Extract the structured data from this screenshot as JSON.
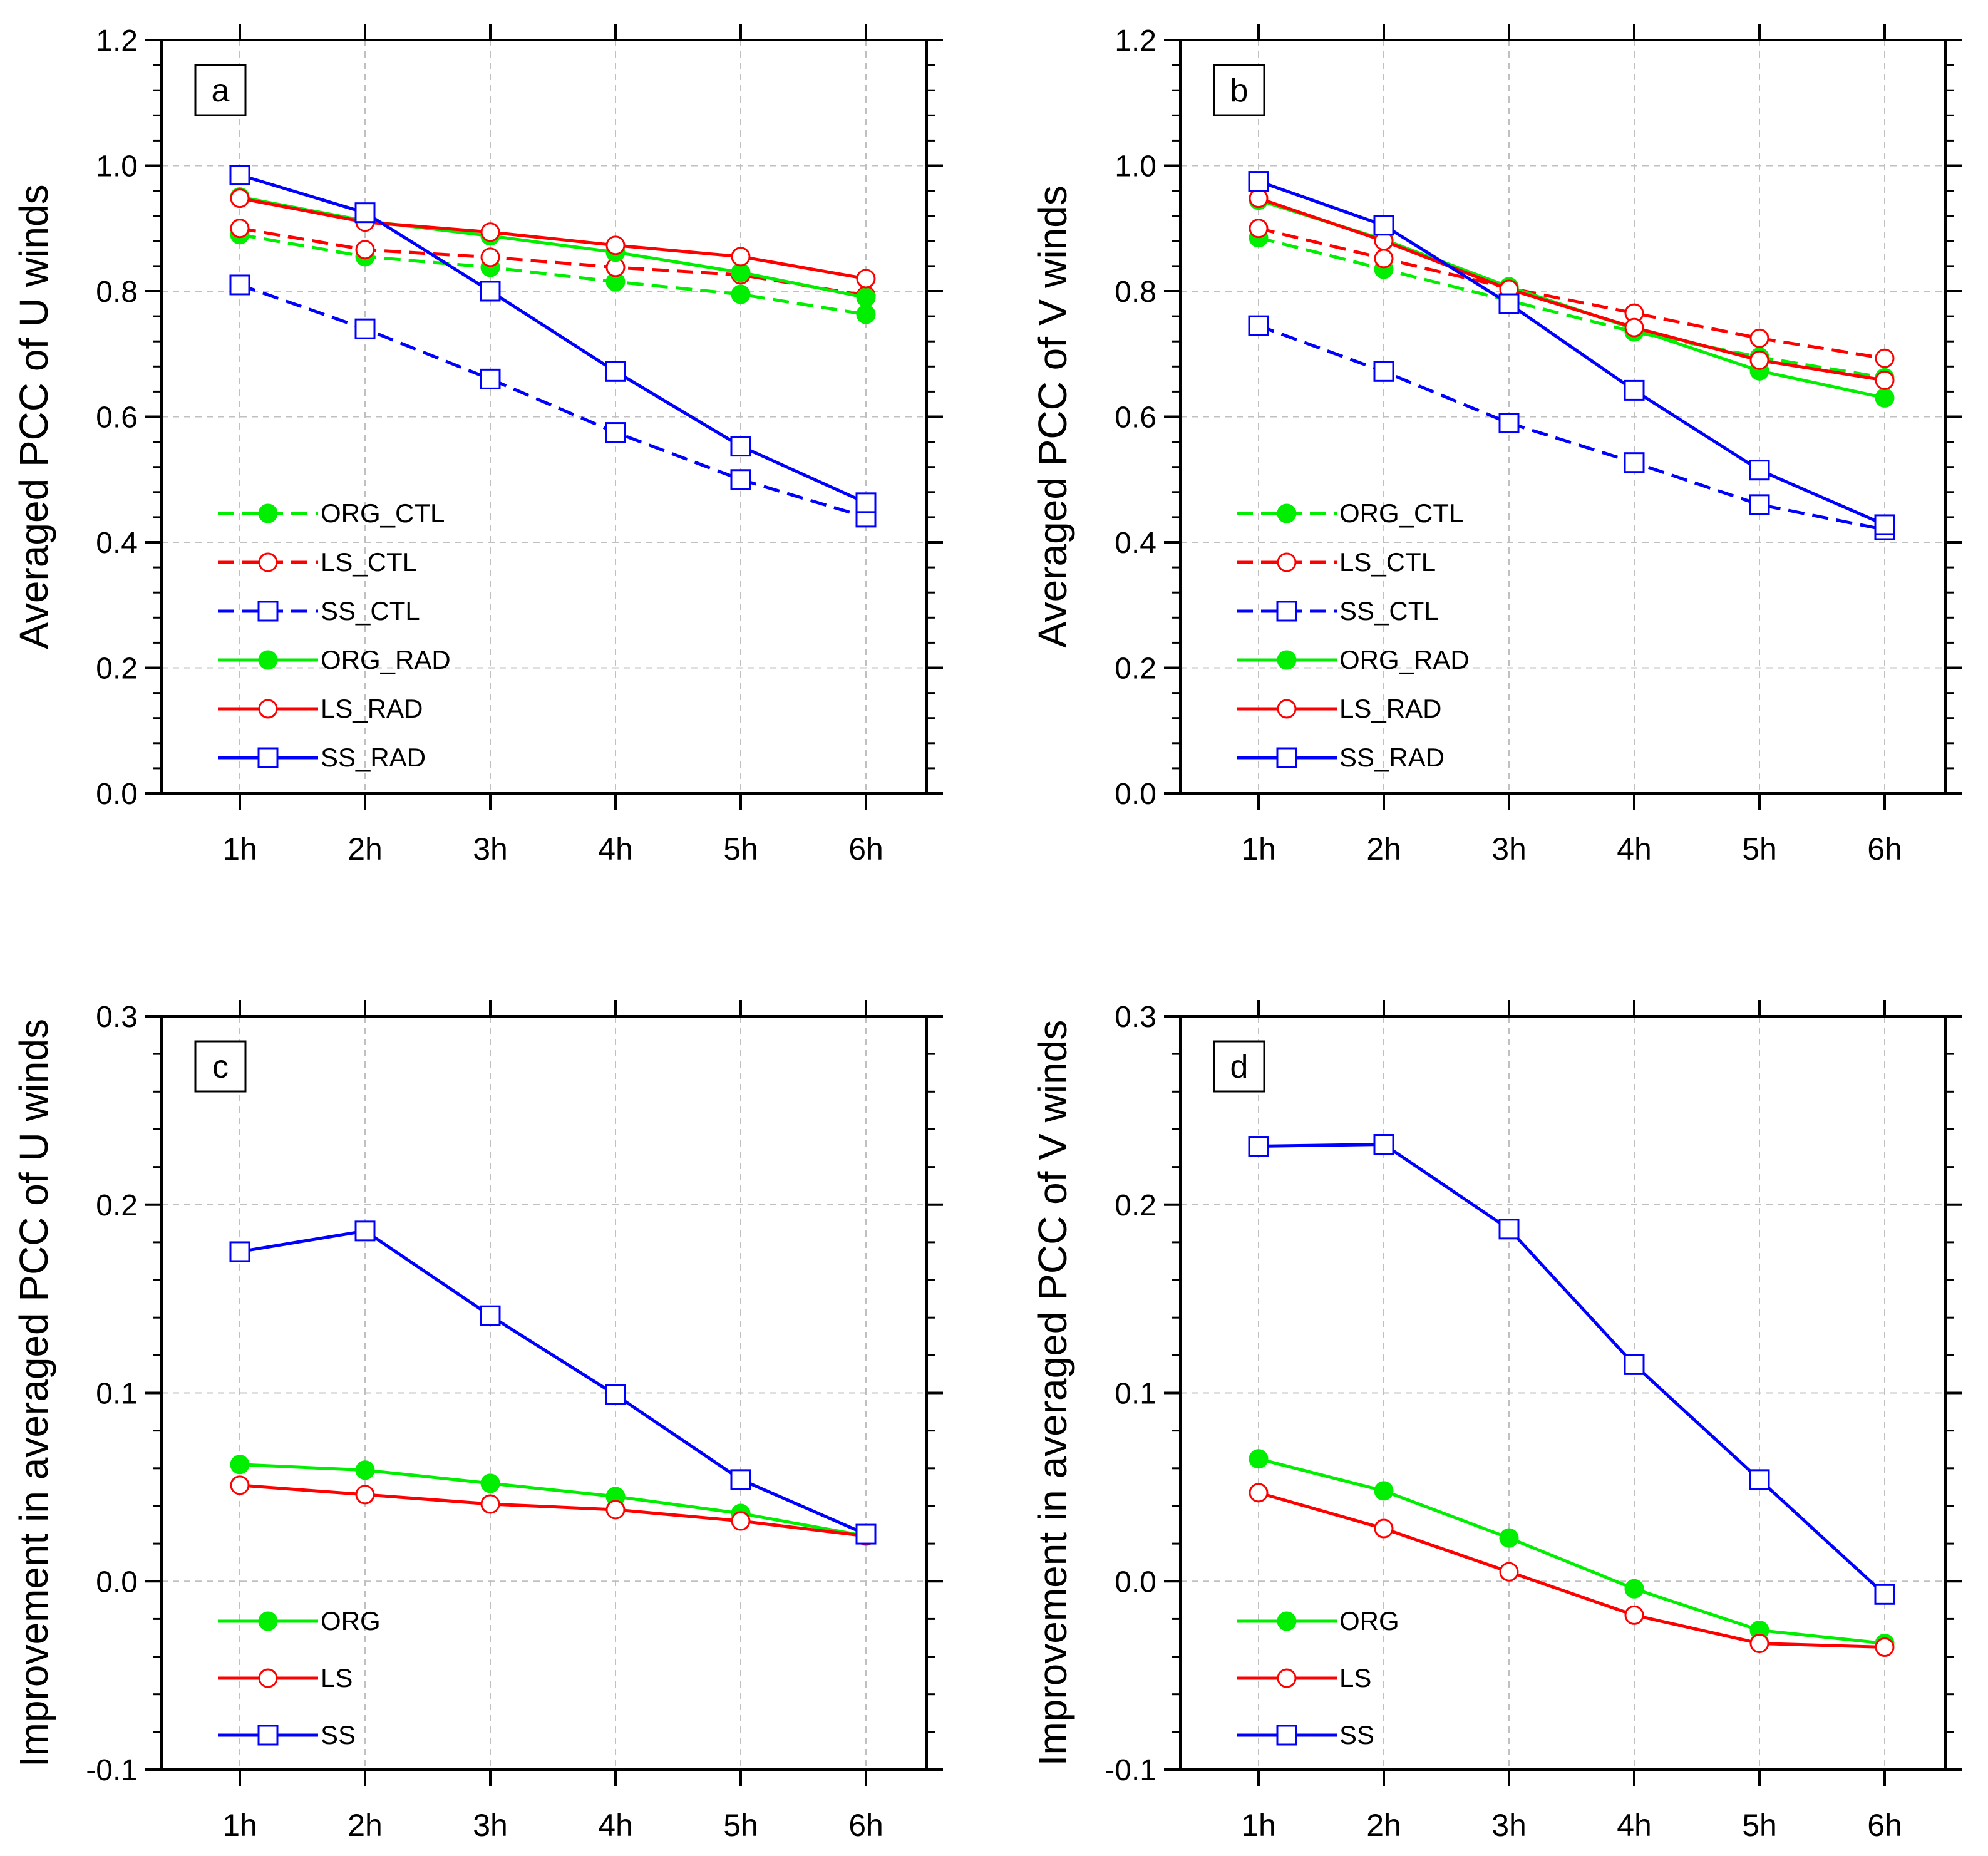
{
  "colors": {
    "ORG": "#00ee00",
    "LS": "#ff0000",
    "SS": "#0000ff",
    "axis": "#000000",
    "grid": "#c0c0c0"
  },
  "chart_data": [
    {
      "type": "line",
      "panel_label": "a",
      "title": "",
      "xlabel": "",
      "ylabel": "Averaged PCC of U winds",
      "categories": [
        "1h",
        "2h",
        "3h",
        "4h",
        "5h",
        "6h"
      ],
      "ylim": [
        0.0,
        1.2
      ],
      "yticks": [
        0.0,
        0.2,
        0.4,
        0.6,
        0.8,
        1.0,
        1.2
      ],
      "ytick_labels": [
        "0.0",
        "0.2",
        "0.4",
        "0.6",
        "0.8",
        "1.0",
        "1.2"
      ],
      "grid": true,
      "legend_position": "lower-left",
      "series": [
        {
          "name": "ORG_CTL",
          "group": "ORG",
          "dashed": true,
          "marker": "filled-circle",
          "values": [
            0.89,
            0.855,
            0.838,
            0.815,
            0.795,
            0.763
          ]
        },
        {
          "name": "LS_CTL",
          "group": "LS",
          "dashed": true,
          "marker": "open-circle",
          "values": [
            0.9,
            0.866,
            0.854,
            0.838,
            0.826,
            0.793
          ]
        },
        {
          "name": "SS_CTL",
          "group": "SS",
          "dashed": true,
          "marker": "open-square",
          "values": [
            0.81,
            0.74,
            0.66,
            0.575,
            0.5,
            0.44
          ]
        },
        {
          "name": "ORG_RAD",
          "group": "ORG",
          "dashed": false,
          "marker": "filled-circle",
          "values": [
            0.95,
            0.912,
            0.888,
            0.862,
            0.83,
            0.79
          ]
        },
        {
          "name": "LS_RAD",
          "group": "LS",
          "dashed": false,
          "marker": "open-circle",
          "values": [
            0.948,
            0.91,
            0.894,
            0.873,
            0.855,
            0.82
          ]
        },
        {
          "name": "SS_RAD",
          "group": "SS",
          "dashed": false,
          "marker": "open-square",
          "values": [
            0.985,
            0.925,
            0.8,
            0.672,
            0.553,
            0.463
          ]
        }
      ]
    },
    {
      "type": "line",
      "panel_label": "b",
      "title": "",
      "xlabel": "",
      "ylabel": "Averaged PCC of V winds",
      "categories": [
        "1h",
        "2h",
        "3h",
        "4h",
        "5h",
        "6h"
      ],
      "ylim": [
        0.0,
        1.2
      ],
      "yticks": [
        0.0,
        0.2,
        0.4,
        0.6,
        0.8,
        1.0,
        1.2
      ],
      "ytick_labels": [
        "0.0",
        "0.2",
        "0.4",
        "0.6",
        "0.8",
        "1.0",
        "1.2"
      ],
      "grid": true,
      "legend_position": "lower-left",
      "series": [
        {
          "name": "ORG_CTL",
          "group": "ORG",
          "dashed": true,
          "marker": "filled-circle",
          "values": [
            0.885,
            0.835,
            0.785,
            0.735,
            0.695,
            0.662
          ]
        },
        {
          "name": "LS_CTL",
          "group": "LS",
          "dashed": true,
          "marker": "open-circle",
          "values": [
            0.9,
            0.852,
            0.805,
            0.765,
            0.725,
            0.693
          ]
        },
        {
          "name": "SS_CTL",
          "group": "SS",
          "dashed": true,
          "marker": "open-square",
          "values": [
            0.745,
            0.672,
            0.59,
            0.527,
            0.46,
            0.42
          ]
        },
        {
          "name": "ORG_RAD",
          "group": "ORG",
          "dashed": false,
          "marker": "filled-circle",
          "values": [
            0.945,
            0.882,
            0.807,
            0.74,
            0.673,
            0.63
          ]
        },
        {
          "name": "LS_RAD",
          "group": "LS",
          "dashed": false,
          "marker": "open-circle",
          "values": [
            0.948,
            0.88,
            0.803,
            0.742,
            0.69,
            0.658
          ]
        },
        {
          "name": "SS_RAD",
          "group": "SS",
          "dashed": false,
          "marker": "open-square",
          "values": [
            0.975,
            0.905,
            0.78,
            0.642,
            0.515,
            0.428
          ]
        }
      ]
    },
    {
      "type": "line",
      "panel_label": "c",
      "title": "",
      "xlabel": "",
      "ylabel": "Improvement in averaged PCC of U winds",
      "categories": [
        "1h",
        "2h",
        "3h",
        "4h",
        "5h",
        "6h"
      ],
      "ylim": [
        -0.1,
        0.3
      ],
      "yticks": [
        -0.1,
        0.0,
        0.1,
        0.2,
        0.3
      ],
      "ytick_labels": [
        "-0.1",
        "0.0",
        "0.1",
        "0.2",
        "0.3"
      ],
      "grid": true,
      "legend_position": "lower-left",
      "series": [
        {
          "name": "ORG",
          "group": "ORG",
          "dashed": false,
          "marker": "filled-circle",
          "values": [
            0.062,
            0.059,
            0.052,
            0.045,
            0.036,
            0.024
          ]
        },
        {
          "name": "LS",
          "group": "LS",
          "dashed": false,
          "marker": "open-circle",
          "values": [
            0.051,
            0.046,
            0.041,
            0.038,
            0.032,
            0.024
          ]
        },
        {
          "name": "SS",
          "group": "SS",
          "dashed": false,
          "marker": "open-square",
          "values": [
            0.175,
            0.186,
            0.141,
            0.099,
            0.054,
            0.025
          ]
        }
      ]
    },
    {
      "type": "line",
      "panel_label": "d",
      "title": "",
      "xlabel": "",
      "ylabel": "Improvement in averaged PCC of V winds",
      "categories": [
        "1h",
        "2h",
        "3h",
        "4h",
        "5h",
        "6h"
      ],
      "ylim": [
        -0.1,
        0.3
      ],
      "yticks": [
        -0.1,
        0.0,
        0.1,
        0.2,
        0.3
      ],
      "ytick_labels": [
        "-0.1",
        "0.0",
        "0.1",
        "0.2",
        "0.3"
      ],
      "grid": true,
      "legend_position": "lower-left",
      "series": [
        {
          "name": "ORG",
          "group": "ORG",
          "dashed": false,
          "marker": "filled-circle",
          "values": [
            0.065,
            0.048,
            0.023,
            -0.004,
            -0.026,
            -0.033
          ]
        },
        {
          "name": "LS",
          "group": "LS",
          "dashed": false,
          "marker": "open-circle",
          "values": [
            0.047,
            0.028,
            0.005,
            -0.018,
            -0.033,
            -0.035
          ]
        },
        {
          "name": "SS",
          "group": "SS",
          "dashed": false,
          "marker": "open-square",
          "values": [
            0.231,
            0.232,
            0.187,
            0.115,
            0.054,
            -0.007
          ]
        }
      ]
    }
  ]
}
